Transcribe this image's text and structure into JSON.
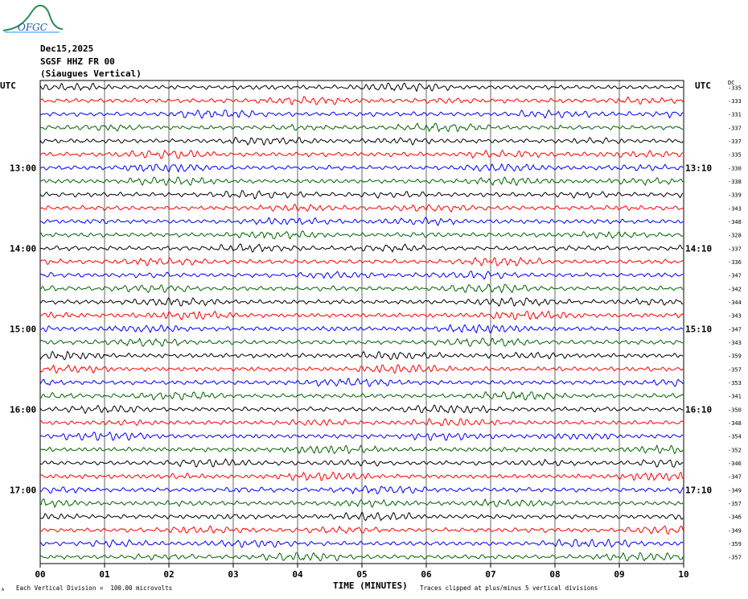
{
  "logo": {
    "text": "OFGC"
  },
  "header": {
    "date": "Dec15,2025",
    "station": "SGSF HHZ FR 00",
    "location": "(Siaugues Vertical)"
  },
  "labels": {
    "utc_left": "UTC",
    "utc_right": "UTC",
    "dc_header": "DC",
    "xlabel": "TIME (MINUTES)",
    "footer_left": "Each Vertical Division =  100.00 microvolts",
    "footer_right": "Traces clipped at plus/minus 5 vertical divisions",
    "corner_mark": "A"
  },
  "colors": {
    "trace_cycle": [
      "#000000",
      "#ff0000",
      "#0000ff",
      "#006400"
    ],
    "grid": "#000000"
  },
  "chart_data": {
    "type": "line",
    "title": "SGSF HHZ FR 00",
    "xlabel": "TIME (MINUTES)",
    "xlim": [
      0,
      10
    ],
    "x_ticks": [
      "00",
      "01",
      "02",
      "03",
      "04",
      "05",
      "06",
      "07",
      "08",
      "09",
      "10"
    ],
    "left_hour_labels": [
      {
        "row": 6,
        "text": "13:00"
      },
      {
        "row": 12,
        "text": "14:00"
      },
      {
        "row": 18,
        "text": "15:00"
      },
      {
        "row": 24,
        "text": "16:00"
      },
      {
        "row": 30,
        "text": "17:00"
      }
    ],
    "right_hour_labels": [
      {
        "row": 6,
        "text": "13:10"
      },
      {
        "row": 12,
        "text": "14:10"
      },
      {
        "row": 18,
        "text": "15:10"
      },
      {
        "row": 24,
        "text": "16:10"
      },
      {
        "row": 30,
        "text": "17:10"
      }
    ],
    "dc_offsets": [
      "-335",
      "-333",
      "-331",
      "-337",
      "-337",
      "-335",
      "-330",
      "-338",
      "-339",
      "-343",
      "-348",
      "-328",
      "-337",
      "-336",
      "-347",
      "-342",
      "-344",
      "-343",
      "-347",
      "-343",
      "-359",
      "-357",
      "-353",
      "-341",
      "-350",
      "-348",
      "-354",
      "-352",
      "-346",
      "-347",
      "-349",
      "-357",
      "-346",
      "-349",
      "-359",
      "-357"
    ],
    "traces": 36,
    "trace_scale": "100.00 microvolts per vertical division",
    "clip": "plus/minus 5 vertical divisions"
  }
}
